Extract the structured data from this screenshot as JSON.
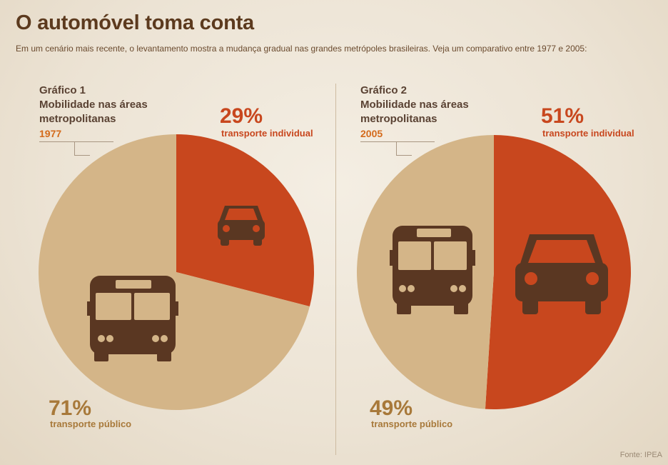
{
  "header": {
    "title": "O automóvel toma conta",
    "subtitle": "Em um cenário mais recente, o levantamento mostra a mudança gradual nas grandes metrópoles brasileiras. Veja um comparativo entre 1977 e 2005:"
  },
  "colors": {
    "individual": "#c8471e",
    "publico": "#d4b588",
    "icon": "#5a3722"
  },
  "chart_data": [
    {
      "type": "pie",
      "title": "Gráfico 1",
      "subtitle": "Mobilidade nas áreas metropolitanas",
      "year": "1977",
      "slices": [
        {
          "label": "transporte individual",
          "value": 29,
          "display": "29%",
          "icon": "car-icon"
        },
        {
          "label": "transporte público",
          "value": 71,
          "display": "71%",
          "icon": "bus-icon"
        }
      ]
    },
    {
      "type": "pie",
      "title": "Gráfico 2",
      "subtitle": "Mobilidade nas áreas metropolitanas",
      "year": "2005",
      "slices": [
        {
          "label": "transporte individual",
          "value": 51,
          "display": "51%",
          "icon": "car-icon"
        },
        {
          "label": "transporte público",
          "value": 49,
          "display": "49%",
          "icon": "bus-icon"
        }
      ]
    }
  ],
  "footer": {
    "source": "Fonte: IPEA"
  }
}
